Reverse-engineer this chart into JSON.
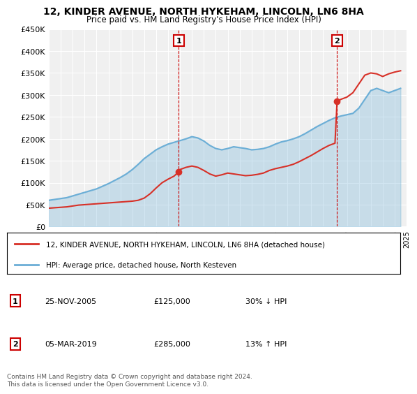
{
  "title": "12, KINDER AVENUE, NORTH HYKEHAM, LINCOLN, LN6 8HA",
  "subtitle": "Price paid vs. HM Land Registry's House Price Index (HPI)",
  "legend_line1": "12, KINDER AVENUE, NORTH HYKEHAM, LINCOLN, LN6 8HA (detached house)",
  "legend_line2": "HPI: Average price, detached house, North Kesteven",
  "annotation1_label": "1",
  "annotation1_date": "25-NOV-2005",
  "annotation1_price": "£125,000",
  "annotation1_hpi": "30% ↓ HPI",
  "annotation2_label": "2",
  "annotation2_date": "05-MAR-2019",
  "annotation2_price": "£285,000",
  "annotation2_hpi": "13% ↑ HPI",
  "footer": "Contains HM Land Registry data © Crown copyright and database right 2024.\nThis data is licensed under the Open Government Licence v3.0.",
  "hpi_color": "#6baed6",
  "price_color": "#d73027",
  "marker_color": "#d73027",
  "ylim": [
    0,
    450000
  ],
  "yticks": [
    0,
    50000,
    100000,
    150000,
    200000,
    250000,
    300000,
    350000,
    400000,
    450000
  ],
  "ytick_labels": [
    "£0",
    "£50K",
    "£100K",
    "£150K",
    "£200K",
    "£250K",
    "£300K",
    "£350K",
    "£400K",
    "£450K"
  ],
  "sale1_x": 2005.9,
  "sale1_y": 125000,
  "sale2_x": 2019.17,
  "sale2_y": 285000,
  "vline1_x": 2005.9,
  "vline2_x": 2019.17,
  "hpi_data_x": [
    1995,
    1995.5,
    1996,
    1996.5,
    1997,
    1997.5,
    1998,
    1998.5,
    1999,
    1999.5,
    2000,
    2000.5,
    2001,
    2001.5,
    2002,
    2002.5,
    2003,
    2003.5,
    2004,
    2004.5,
    2005,
    2005.5,
    2006,
    2006.5,
    2007,
    2007.5,
    2008,
    2008.5,
    2009,
    2009.5,
    2010,
    2010.5,
    2011,
    2011.5,
    2012,
    2012.5,
    2013,
    2013.5,
    2014,
    2014.5,
    2015,
    2015.5,
    2016,
    2016.5,
    2017,
    2017.5,
    2018,
    2018.5,
    2019,
    2019.5,
    2020,
    2020.5,
    2021,
    2021.5,
    2022,
    2022.5,
    2023,
    2023.5,
    2024,
    2024.5
  ],
  "hpi_data_y": [
    60000,
    62000,
    64000,
    66000,
    70000,
    74000,
    78000,
    82000,
    86000,
    92000,
    98000,
    105000,
    112000,
    120000,
    130000,
    142000,
    155000,
    165000,
    175000,
    182000,
    188000,
    192000,
    196000,
    200000,
    205000,
    202000,
    195000,
    185000,
    178000,
    175000,
    178000,
    182000,
    180000,
    178000,
    175000,
    176000,
    178000,
    182000,
    188000,
    193000,
    196000,
    200000,
    205000,
    212000,
    220000,
    228000,
    235000,
    242000,
    248000,
    252000,
    255000,
    258000,
    270000,
    290000,
    310000,
    315000,
    310000,
    305000,
    310000,
    315000
  ],
  "price_data_x": [
    1995,
    1995.5,
    1996,
    1996.5,
    1997,
    1997.5,
    1998,
    1998.5,
    1999,
    1999.5,
    2000,
    2000.5,
    2001,
    2001.5,
    2002,
    2002.5,
    2003,
    2003.5,
    2004,
    2004.5,
    2005,
    2005.5,
    2005.9,
    2006,
    2006.5,
    2007,
    2007.5,
    2008,
    2008.5,
    2009,
    2009.5,
    2010,
    2010.5,
    2011,
    2011.5,
    2012,
    2012.5,
    2013,
    2013.5,
    2014,
    2014.5,
    2015,
    2015.5,
    2016,
    2016.5,
    2017,
    2017.5,
    2018,
    2018.5,
    2019,
    2019.17,
    2019.5,
    2020,
    2020.5,
    2021,
    2021.5,
    2022,
    2022.5,
    2023,
    2023.5,
    2024,
    2024.5
  ],
  "price_data_y": [
    42000,
    43000,
    44000,
    45000,
    47000,
    49000,
    50000,
    51000,
    52000,
    53000,
    54000,
    55000,
    56000,
    57000,
    58000,
    60000,
    65000,
    75000,
    88000,
    100000,
    108000,
    115000,
    125000,
    130000,
    135000,
    138000,
    135000,
    128000,
    120000,
    115000,
    118000,
    122000,
    120000,
    118000,
    116000,
    117000,
    119000,
    122000,
    128000,
    132000,
    135000,
    138000,
    142000,
    148000,
    155000,
    162000,
    170000,
    178000,
    185000,
    190000,
    285000,
    290000,
    295000,
    305000,
    325000,
    345000,
    350000,
    348000,
    342000,
    348000,
    352000,
    355000
  ],
  "xlim": [
    1995,
    2025
  ],
  "xticks": [
    1995,
    1996,
    1997,
    1998,
    1999,
    2000,
    2001,
    2002,
    2003,
    2004,
    2005,
    2006,
    2007,
    2008,
    2009,
    2010,
    2011,
    2012,
    2013,
    2014,
    2015,
    2016,
    2017,
    2018,
    2019,
    2020,
    2021,
    2022,
    2023,
    2024,
    2025
  ],
  "bg_color": "#ffffff",
  "plot_bg_color": "#f0f0f0"
}
